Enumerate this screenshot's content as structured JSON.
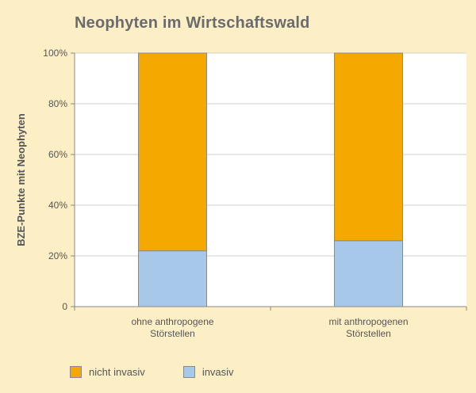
{
  "chart_data": {
    "type": "bar",
    "stacked": true,
    "title": "Neophyten im Wirtschaftswald",
    "ylabel": "BZE-Punkte mit Neophyten",
    "xlabel": "",
    "ylim": [
      0,
      100
    ],
    "yticks": [
      "0",
      "20%",
      "40%",
      "60%",
      "80%",
      "100%"
    ],
    "categories": [
      [
        "ohne anthropogene",
        "Störstellen"
      ],
      [
        "mit anthropogenen",
        "Störstellen"
      ]
    ],
    "series": [
      {
        "name": "invasiv",
        "color": "#a8c8ea",
        "values": [
          22,
          26
        ]
      },
      {
        "name": "nicht invasiv",
        "color": "#f5a800",
        "values": [
          78,
          74
        ]
      }
    ],
    "legend": [
      "nicht invasiv",
      "invasiv"
    ],
    "legend_position": "bottom-left",
    "grid": true,
    "plot_background": "#ffffff",
    "page_background": "#fcefc6"
  }
}
